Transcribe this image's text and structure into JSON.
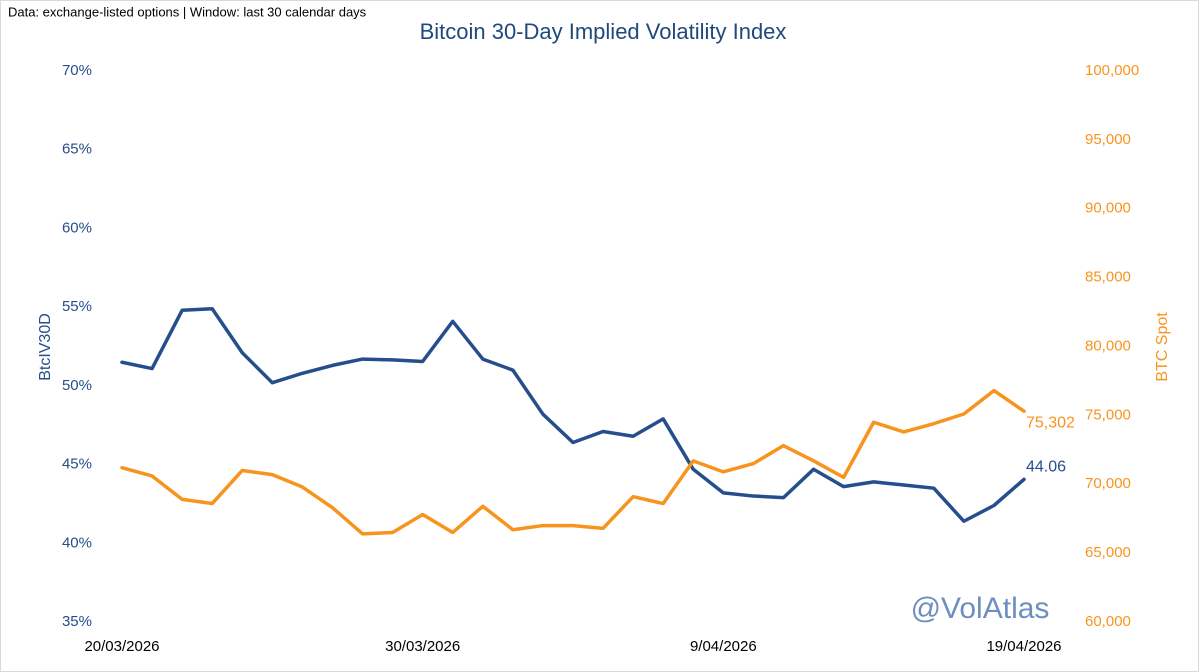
{
  "chart_data": {
    "type": "line",
    "subtitle": "Data: exchange-listed options | Window: last 30 calendar days",
    "title": "Bitcoin 30-Day Implied Volatility Index",
    "y_label": "BtcIV30D",
    "y2_label": "BTC Spot",
    "watermark": "@VolAtlas",
    "categories": [
      "20/03/2026",
      null,
      null,
      null,
      null,
      null,
      null,
      null,
      null,
      null,
      "30/03/2026",
      null,
      null,
      null,
      null,
      null,
      null,
      null,
      null,
      null,
      "9/04/2026",
      null,
      null,
      null,
      null,
      null,
      null,
      null,
      null,
      null,
      "19/04/2026"
    ],
    "series": [
      {
        "name": "BtcIV30D",
        "color": "#264d8c",
        "axis": "y",
        "values": [
          51.5,
          51.1,
          54.8,
          54.9,
          52.1,
          50.2,
          50.8,
          51.3,
          51.7,
          51.65,
          51.55,
          54.1,
          51.7,
          51.0,
          48.2,
          46.4,
          47.1,
          46.8,
          47.9,
          44.7,
          43.2,
          43.0,
          42.9,
          44.7,
          43.6,
          43.9,
          43.7,
          43.5,
          41.4,
          42.4,
          44.06
        ],
        "value_labels": [
          null,
          null,
          null,
          null,
          null,
          null,
          null,
          null,
          null,
          null,
          null,
          null,
          null,
          null,
          null,
          null,
          null,
          null,
          null,
          null,
          null,
          null,
          null,
          null,
          null,
          null,
          null,
          null,
          null,
          null,
          "44.06"
        ]
      },
      {
        "name": "BTC Spot",
        "color": "#f7941d",
        "axis": "y2",
        "values": [
          71200,
          70600,
          68900,
          68600,
          71000,
          70700,
          69800,
          68300,
          66400,
          66500,
          67800,
          66500,
          68400,
          66700,
          67000,
          67000,
          66800,
          69100,
          68600,
          71700,
          70900,
          71500,
          72800,
          71700,
          70500,
          74500,
          73800,
          74400,
          75100,
          76800,
          75302
        ],
        "value_labels": [
          null,
          null,
          null,
          null,
          null,
          null,
          null,
          null,
          null,
          null,
          null,
          null,
          null,
          null,
          null,
          null,
          null,
          null,
          null,
          null,
          null,
          null,
          null,
          null,
          null,
          null,
          null,
          null,
          null,
          null,
          "75,302"
        ]
      }
    ],
    "ylim": [
      35,
      70
    ],
    "yticks": [
      {
        "value": 35,
        "label": "35%"
      },
      {
        "value": 40,
        "label": "40%"
      },
      {
        "value": 45,
        "label": "45%"
      },
      {
        "value": 50,
        "label": "50%"
      },
      {
        "value": 55,
        "label": "55%"
      },
      {
        "value": 60,
        "label": "60%"
      },
      {
        "value": 65,
        "label": "65%"
      },
      {
        "value": 70,
        "label": "70%"
      }
    ],
    "y2lim": [
      60000,
      100000
    ],
    "y2ticks": [
      {
        "value": 60000,
        "label": "60,000"
      },
      {
        "value": 65000,
        "label": "65,000"
      },
      {
        "value": 70000,
        "label": "70,000"
      },
      {
        "value": 75000,
        "label": "75,000"
      },
      {
        "value": 80000,
        "label": "80,000"
      },
      {
        "value": 85000,
        "label": "85,000"
      },
      {
        "value": 90000,
        "label": "90,000"
      },
      {
        "value": 95000,
        "label": "95,000"
      },
      {
        "value": 100000,
        "label": "100,000"
      }
    ],
    "grid": false
  }
}
